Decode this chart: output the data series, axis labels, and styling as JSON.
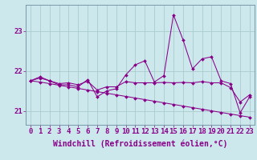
{
  "xlabel": "Windchill (Refroidissement éolien,°C)",
  "background_color": "#cde8ed",
  "grid_color": "#aacccc",
  "line_color": "#880088",
  "x_hours": [
    0,
    1,
    2,
    3,
    4,
    5,
    6,
    7,
    8,
    9,
    10,
    11,
    12,
    13,
    14,
    15,
    16,
    17,
    18,
    19,
    20,
    21,
    22,
    23
  ],
  "series_noisy": [
    21.75,
    21.85,
    21.75,
    21.65,
    21.65,
    21.6,
    21.78,
    21.35,
    21.5,
    21.55,
    21.9,
    22.15,
    22.25,
    21.72,
    21.88,
    23.4,
    22.78,
    22.05,
    22.3,
    22.35,
    21.75,
    21.68,
    20.95,
    21.35
  ],
  "series_decline": [
    21.75,
    21.72,
    21.68,
    21.64,
    21.6,
    21.56,
    21.52,
    21.48,
    21.44,
    21.4,
    21.36,
    21.32,
    21.28,
    21.24,
    21.2,
    21.16,
    21.12,
    21.08,
    21.04,
    21.0,
    20.96,
    20.92,
    20.88,
    20.84
  ],
  "series_flat": [
    21.75,
    21.82,
    21.75,
    21.68,
    21.7,
    21.65,
    21.74,
    21.52,
    21.6,
    21.6,
    21.73,
    21.7,
    21.7,
    21.7,
    21.71,
    21.7,
    21.71,
    21.7,
    21.73,
    21.7,
    21.7,
    21.58,
    21.22,
    21.4
  ],
  "ylim_min": 20.65,
  "ylim_max": 23.65,
  "yticks": [
    21,
    22,
    23
  ],
  "tick_fontsize": 6.5,
  "xlabel_fontsize": 7,
  "marker_size": 2.0,
  "line_width": 0.75
}
